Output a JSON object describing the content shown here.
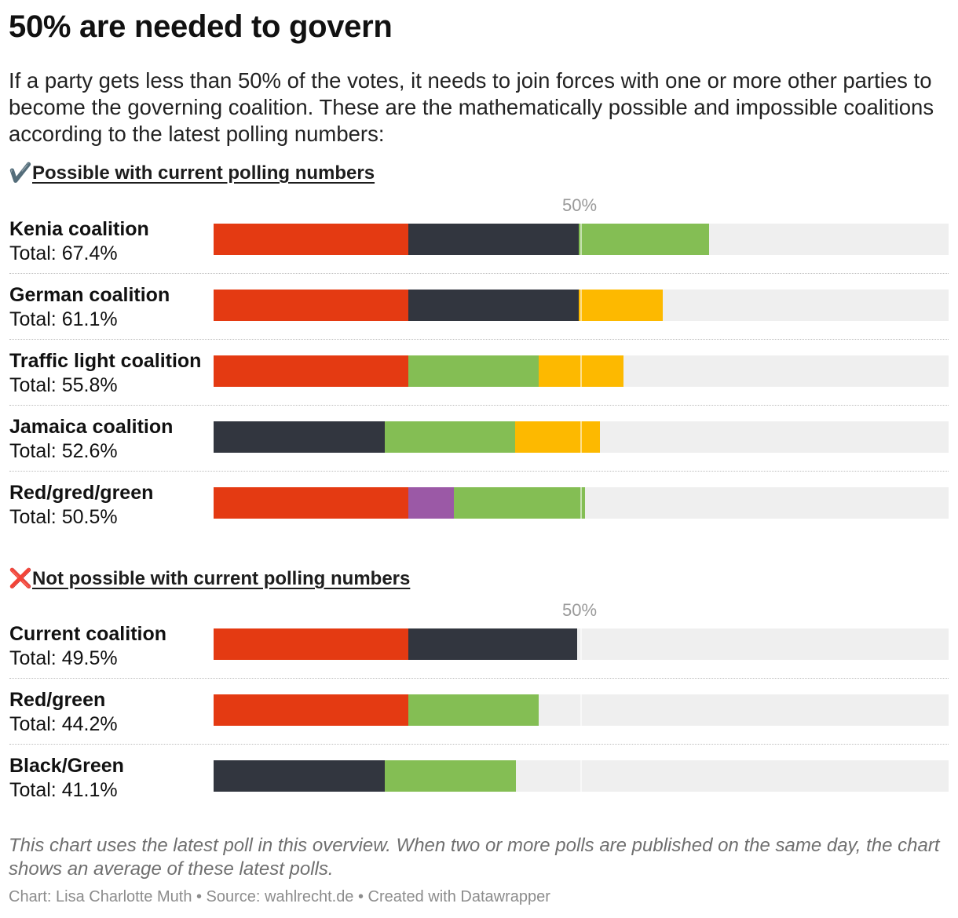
{
  "title": "50% are needed to govern",
  "subtitle": "If a party gets less than 50% of the votes, it needs to join forces with one or more other parties to become the governing coalition. These are the mathematically possible and impossible coalitions according to the latest polling numbers:",
  "sections": {
    "possible": {
      "icon": "✔️",
      "heading": "Possible with current polling numbers",
      "ref_label": "50%"
    },
    "not_possible": {
      "icon": "❌",
      "heading": "Not possible with current polling numbers",
      "ref_label": "50%"
    }
  },
  "note": "This chart uses the latest poll in this overview. When two or more polls are published on the same day, the chart shows an average of these latest polls.",
  "credit": "Chart: Lisa Charlotte Muth • Source: wahlrecht.de • Created with Datawrapper",
  "colors": {
    "red": "#e43a12",
    "black": "#32363f",
    "green": "#84be54",
    "yellow": "#fdb900",
    "purple": "#9b59a6",
    "track": "#efefef"
  },
  "chart_data": {
    "type": "bar",
    "stacked": true,
    "orientation": "horizontal",
    "xlim": [
      0,
      100
    ],
    "reference_line": 50,
    "groups": [
      {
        "group": "possible",
        "rows": [
          {
            "name": "Kenia coalition",
            "total_label": "Total: 67.4%",
            "total": 67.4,
            "segments": [
              {
                "color": "red",
                "value": 26.5
              },
              {
                "color": "black",
                "value": 23.2
              },
              {
                "color": "green",
                "value": 17.7
              }
            ]
          },
          {
            "name": "German coalition",
            "total_label": "Total: 61.1%",
            "total": 61.1,
            "segments": [
              {
                "color": "red",
                "value": 26.5
              },
              {
                "color": "black",
                "value": 23.2
              },
              {
                "color": "yellow",
                "value": 11.4
              }
            ]
          },
          {
            "name": "Traffic light coalition",
            "total_label": "Total: 55.8%",
            "total": 55.8,
            "segments": [
              {
                "color": "red",
                "value": 26.5
              },
              {
                "color": "green",
                "value": 17.7
              },
              {
                "color": "yellow",
                "value": 11.6
              }
            ]
          },
          {
            "name": "Jamaica coalition",
            "total_label": "Total: 52.6%",
            "total": 52.6,
            "segments": [
              {
                "color": "black",
                "value": 23.3
              },
              {
                "color": "green",
                "value": 17.7
              },
              {
                "color": "yellow",
                "value": 11.6
              }
            ]
          },
          {
            "name": "Red/gred/green",
            "total_label": "Total: 50.5%",
            "total": 50.5,
            "segments": [
              {
                "color": "red",
                "value": 26.5
              },
              {
                "color": "purple",
                "value": 6.2
              },
              {
                "color": "green",
                "value": 17.8
              }
            ]
          }
        ]
      },
      {
        "group": "not_possible",
        "rows": [
          {
            "name": "Current coalition",
            "total_label": "Total: 49.5%",
            "total": 49.5,
            "segments": [
              {
                "color": "red",
                "value": 26.5
              },
              {
                "color": "black",
                "value": 23.0
              }
            ]
          },
          {
            "name": "Red/green",
            "total_label": "Total: 44.2%",
            "total": 44.2,
            "segments": [
              {
                "color": "red",
                "value": 26.5
              },
              {
                "color": "green",
                "value": 17.7
              }
            ]
          },
          {
            "name": "Black/Green",
            "total_label": "Total: 41.1%",
            "total": 41.1,
            "segments": [
              {
                "color": "black",
                "value": 23.3
              },
              {
                "color": "green",
                "value": 17.8
              }
            ]
          }
        ]
      }
    ]
  }
}
